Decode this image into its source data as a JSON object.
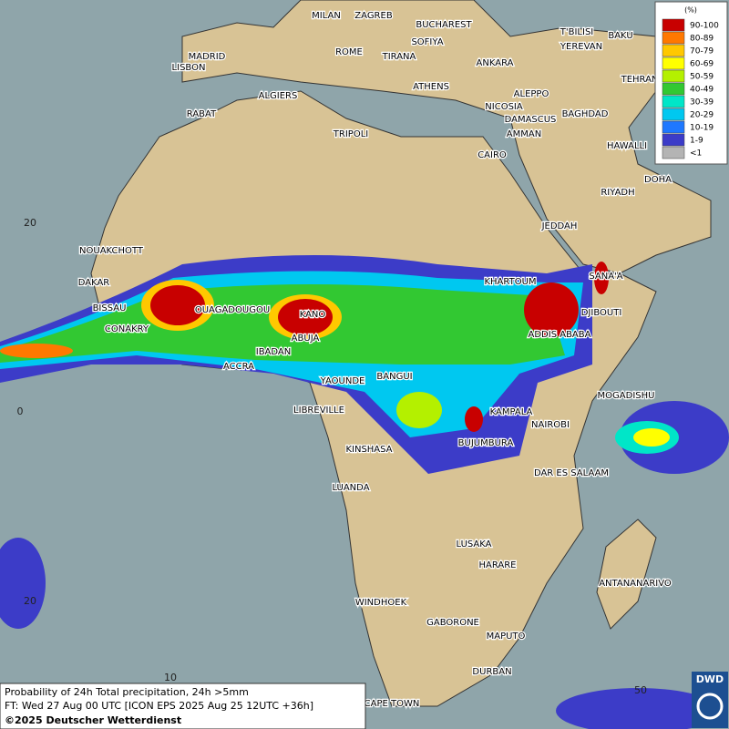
{
  "legend": {
    "unit": "(%)",
    "entries": [
      {
        "label": "90-100",
        "color": "#c80000"
      },
      {
        "label": "80-89",
        "color": "#ff7800"
      },
      {
        "label": "70-79",
        "color": "#ffc800"
      },
      {
        "label": "60-69",
        "color": "#ffff00"
      },
      {
        "label": "50-59",
        "color": "#b4f000"
      },
      {
        "label": "40-49",
        "color": "#32c832"
      },
      {
        "label": "30-39",
        "color": "#00e6c8"
      },
      {
        "label": "20-29",
        "color": "#00c8f0"
      },
      {
        "label": "10-19",
        "color": "#1e78ff"
      },
      {
        "label": "1-9",
        "color": "#3c3cc8"
      },
      {
        "label": "<1",
        "color": "#b4b4b4"
      }
    ]
  },
  "cities": [
    "MILAN",
    "ZAGREB",
    "BUCHAREST",
    "SOFIYA",
    "ROME",
    "TIRANA",
    "MADRID",
    "LISBON",
    "ANKARA",
    "T'BILISI",
    "YEREVAN",
    "BAKU",
    "TEHRAN",
    "ATHENS",
    "ALGIERS",
    "RABAT",
    "NICOSIA",
    "ALEPPO",
    "BAGHDAD",
    "DAMASCUS",
    "AMMAN",
    "TRIPOLI",
    "CAIRO",
    "HAWALLI",
    "DOHA",
    "RIYADH",
    "JEDDAH",
    "NOUAKCHOTT",
    "DAKAR",
    "KHARTOUM",
    "SANA'A",
    "BISSAU",
    "OUAGADOUGOU",
    "KANO",
    "DJIBOUTI",
    "CONAKRY",
    "ABUJA",
    "ADDIS ABABA",
    "IBADAN",
    "ACCRA",
    "BANGUI",
    "YAOUNDE",
    "MOGADISHU",
    "LIBREVILLE",
    "KAMPALA",
    "NAIROBI",
    "BUJUMBURA",
    "KINSHASA",
    "DAR ES SALAAM",
    "LUANDA",
    "LUSAKA",
    "HARARE",
    "ANTANANARIVO",
    "WINDHOEK",
    "GABORONE",
    "MAPUTO",
    "DURBAN",
    "CAPE TOWN"
  ],
  "grid_labels": {
    "lat": [
      "20",
      "0",
      "20"
    ],
    "lon": [
      "10",
      "50"
    ]
  },
  "caption": {
    "line1": "Probability of 24h Total precipitation, 24h >5mm",
    "line2": "FT: Wed 27 Aug 00 UTC [ICON EPS 2025 Aug 25 12UTC +36h]",
    "line3": "©2025 Deutscher Wetterdienst"
  },
  "logo": "DWD"
}
